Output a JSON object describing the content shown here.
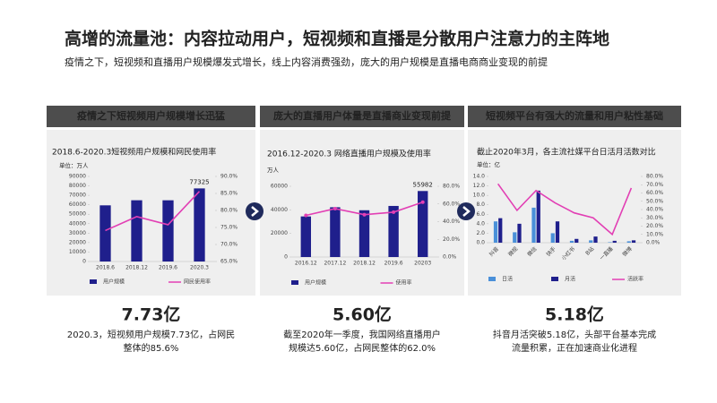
{
  "header": {
    "title": "高增的流量池：内容拉动用户，短视频和直播是分散用户注意力的主阵地",
    "subtitle": "疫情之下，短视频和直播用户规模爆发式增长，线上内容消费强劲，庞大的用户规模是直播电商商业变现的前提"
  },
  "panels": [
    {
      "heading": "疫情之下短视频用户规模增长迅猛",
      "stat": "7.73亿",
      "desc": [
        "2020.3，短视频用户规模7.73亿，占网民",
        "整体的85.6%"
      ]
    },
    {
      "heading": "庞大的直播用户体量是直播商业变现前提",
      "stat": "5.60亿",
      "desc": [
        "截至2020年一季度，我国网络直播用户",
        "规模达5.60亿，占网民整体的62.0%"
      ]
    },
    {
      "heading": "短视频平台有强大的流量和用户粘性基础",
      "stat": "5.18亿",
      "desc": [
        "抖音月活突破5.18亿，头部平台基本完成",
        "流量积累，正在加速商业化进程"
      ]
    }
  ],
  "chart_data": [
    {
      "type": "bar",
      "title": "2018.6-2020.3短视频用户规模和网民使用率",
      "unit": "单位：万人",
      "categories": [
        "2018.6",
        "2018.12",
        "2019.6",
        "2020.3"
      ],
      "series": [
        {
          "name": "用户规模",
          "type": "bar",
          "color": "#1f1f8c",
          "values": [
            59400,
            64798,
            64764,
            77325
          ],
          "value_labels": [
            null,
            null,
            null,
            "77325"
          ]
        },
        {
          "name": "网民使用率",
          "type": "line",
          "axis": "y2",
          "color": "#e23fb4",
          "values": [
            74.1,
            78.2,
            75.8,
            85.6
          ]
        }
      ],
      "ylim": [
        0,
        90000
      ],
      "yticks": [
        0,
        10000,
        20000,
        30000,
        40000,
        50000,
        60000,
        70000,
        80000,
        90000
      ],
      "y2lim": [
        65,
        90
      ],
      "y2ticks": [
        {
          "value": 65,
          "label": "65.0%"
        },
        {
          "value": 70,
          "label": "70.0%"
        },
        {
          "value": 75,
          "label": "75.0%"
        },
        {
          "value": 80,
          "label": "80.0%"
        },
        {
          "value": 85,
          "label": "85.0%"
        },
        {
          "value": 90,
          "label": "90.0%"
        }
      ]
    },
    {
      "type": "bar",
      "title": "2016.12-2020.3 网络直播用户规模及使用率",
      "unit": "万人",
      "categories": [
        "2016.12",
        "2017.12",
        "2018.12",
        "2019.6",
        "20203"
      ],
      "series": [
        {
          "name": "用户规模",
          "type": "bar",
          "color": "#1f1f8c",
          "values": [
            34431,
            42209,
            39676,
            43322,
            55982
          ],
          "value_labels": [
            null,
            null,
            null,
            null,
            "55982"
          ]
        },
        {
          "name": "使用率",
          "type": "line",
          "axis": "y2",
          "color": "#e23fb4",
          "values": [
            47.1,
            54.7,
            47.9,
            50.7,
            62.0
          ]
        }
      ],
      "ylim": [
        0,
        60000
      ],
      "yticks": [
        0,
        20000,
        40000,
        60000
      ],
      "y2lim": [
        0,
        80
      ],
      "y2ticks": [
        {
          "value": 0,
          "label": "0.0%"
        },
        {
          "value": 20,
          "label": "20.0%"
        },
        {
          "value": 40,
          "label": "40.0%"
        },
        {
          "value": 60,
          "label": "60.0%"
        },
        {
          "value": 80,
          "label": "80.0%"
        }
      ]
    },
    {
      "type": "bar",
      "title": "截止2020年3月，各主流社媒平台日活月活数对比",
      "unit": "单位：亿",
      "categories": [
        "抖音",
        "微视",
        "微信",
        "快手",
        "小红书",
        "B站",
        "一直播",
        "微博"
      ],
      "rotate_labels": true,
      "series": [
        {
          "name": "日活",
          "type": "bar",
          "color": "#4a90d9",
          "values": [
            4.5,
            2.2,
            7.4,
            2.0,
            0.4,
            0.5,
            0.1,
            0.3
          ]
        },
        {
          "name": "月活",
          "type": "bar",
          "color": "#1f1f8c",
          "values": [
            5.18,
            4.0,
            11.0,
            4.5,
            0.8,
            1.3,
            0.4,
            0.5
          ]
        },
        {
          "name": "活跃率",
          "type": "line",
          "axis": "y2",
          "color": "#e23fb4",
          "values": [
            71,
            39,
            63,
            48,
            36,
            30,
            10,
            66
          ]
        }
      ],
      "ylim": [
        0,
        14
      ],
      "yticks": [
        {
          "value": 0,
          "label": "0.0"
        },
        {
          "value": 2,
          "label": "2.0"
        },
        {
          "value": 4,
          "label": "4.0"
        },
        {
          "value": 6,
          "label": "6.0"
        },
        {
          "value": 8,
          "label": "8.0"
        },
        {
          "value": 10,
          "label": "10.0"
        },
        {
          "value": 12,
          "label": "12.0"
        },
        {
          "value": 14,
          "label": "14.0"
        }
      ],
      "y2lim": [
        0,
        80
      ],
      "y2ticks": [
        {
          "value": 0,
          "label": "0.0%"
        },
        {
          "value": 10,
          "label": "10.0%"
        },
        {
          "value": 20,
          "label": "20.0%"
        },
        {
          "value": 30,
          "label": "30.0%"
        },
        {
          "value": 40,
          "label": "40.0%"
        },
        {
          "value": 50,
          "label": "50.0%"
        },
        {
          "value": 60,
          "label": "60.0%"
        },
        {
          "value": 70,
          "label": "70.0%"
        },
        {
          "value": 80,
          "label": "80.0%"
        }
      ]
    }
  ]
}
